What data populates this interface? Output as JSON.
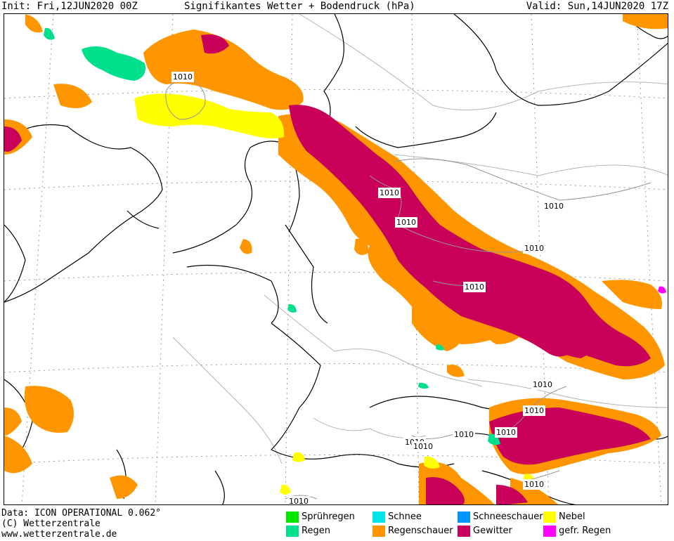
{
  "header": {
    "init": "Init: Fri,12JUN2020 00Z",
    "title": "Signifikantes Wetter +  Bodendruck (hPa)",
    "valid": "Valid: Sun,14JUN2020 17Z"
  },
  "footer": {
    "data_line": "Data: ICON OPERATIONAL 0.062°",
    "copyright": "(C) Wetterzentrale",
    "website": "www.wetterzentrale.de"
  },
  "legend": [
    {
      "label": "Sprühregen",
      "color": "#00e600"
    },
    {
      "label": "Regen",
      "color": "#00e08c"
    },
    {
      "label": "Schnee",
      "color": "#00e6e6"
    },
    {
      "label": "Regenschauer",
      "color": "#ff9600"
    },
    {
      "label": "Schneeschauer",
      "color": "#0096ff"
    },
    {
      "label": "Gewitter",
      "color": "#c8005a"
    },
    {
      "label": "Nebel",
      "color": "#ffff00"
    },
    {
      "label": "gefr. Regen",
      "color": "#ff00ff"
    }
  ],
  "isobars": [
    {
      "label": "1010"
    },
    {
      "label": "1010"
    },
    {
      "label": "1010"
    },
    {
      "label": "1010"
    },
    {
      "label": "1010"
    },
    {
      "label": "1010"
    },
    {
      "label": "1010"
    },
    {
      "label": "1010"
    },
    {
      "label": "1010"
    },
    {
      "label": "1010"
    },
    {
      "label": "1010"
    },
    {
      "label": "1010"
    },
    {
      "label": "1010"
    },
    {
      "label": "1010"
    }
  ],
  "colors": {
    "regenschauer": "#ff9600",
    "gewitter": "#c8005a",
    "nebel": "#ffff00",
    "regen": "#00e08c",
    "gefr_regen": "#ff00ff"
  }
}
